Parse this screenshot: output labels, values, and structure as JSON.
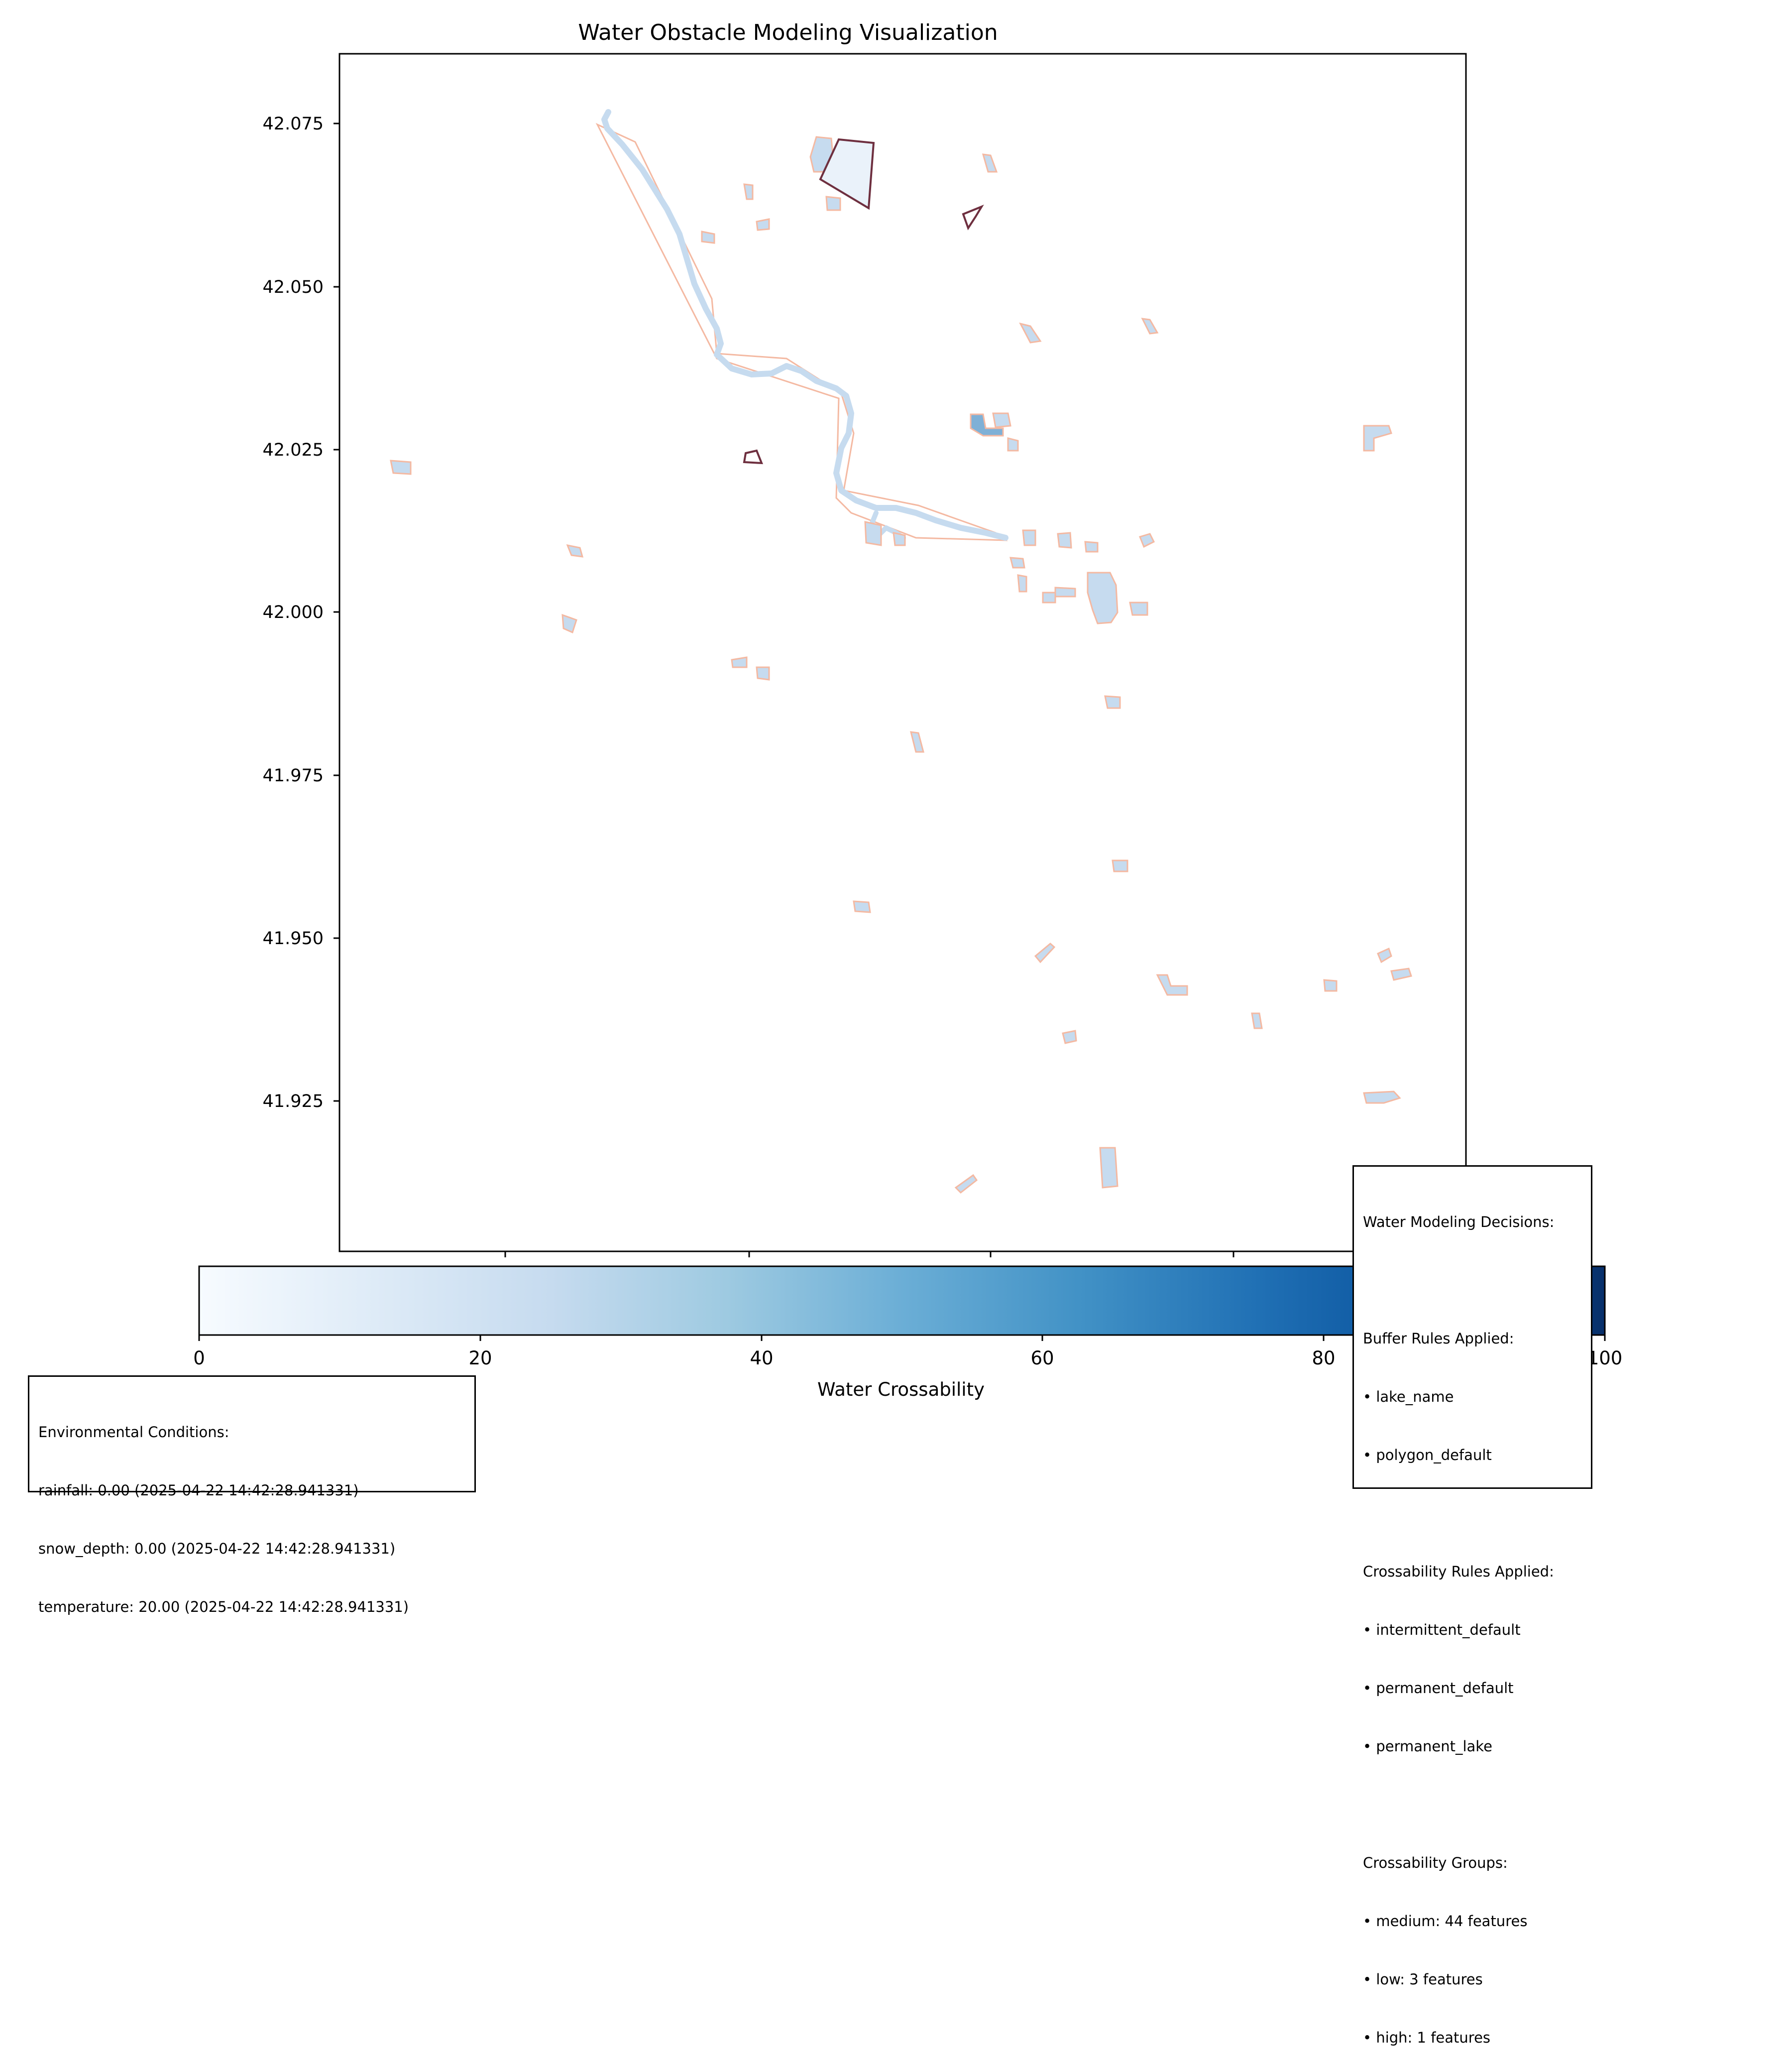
{
  "title": "Water Obstacle Modeling Visualization",
  "map": {
    "y_ticks": [
      "42.075",
      "42.050",
      "42.025",
      "42.000",
      "41.975",
      "41.950",
      "41.925"
    ],
    "x_ticks": [
      "",
      "",
      "",
      "",
      "",
      ""
    ],
    "feature_colors": {
      "water_fill": "#c6dbef",
      "buffer_outline": "#f4b9a2",
      "zone_outline": "#6e2f3f",
      "high_crossability_fill": "#7fb0d6"
    }
  },
  "colorbar": {
    "label": "Water Crossability",
    "ticks": [
      "0",
      "20",
      "40",
      "60",
      "80",
      "100"
    ],
    "range": [
      0,
      100
    ],
    "colormap": "Blues",
    "colors": [
      "#f7fbff",
      "#deebf7",
      "#c6dbef",
      "#9ecae1",
      "#6baed6",
      "#4292c6",
      "#2171b5",
      "#08519c",
      "#08306b"
    ]
  },
  "environment": {
    "heading": "Environmental Conditions:",
    "lines": [
      "rainfall: 0.00 (2025-04-22 14:42:28.941331)",
      "snow_depth: 0.00 (2025-04-22 14:42:28.941331)",
      "temperature: 20.00 (2025-04-22 14:42:28.941331)"
    ]
  },
  "decisions": {
    "heading": "Water Modeling Decisions:",
    "buffer_heading": "Buffer Rules Applied:",
    "buffer_rules": [
      "• lake_name",
      "• polygon_default"
    ],
    "cross_heading": "Crossability Rules Applied:",
    "cross_rules": [
      "• intermittent_default",
      "• permanent_default",
      "• permanent_lake"
    ],
    "groups_heading": "Crossability Groups:",
    "groups": [
      "• medium: 44 features",
      "• low: 3 features",
      "• high: 1 features"
    ]
  }
}
